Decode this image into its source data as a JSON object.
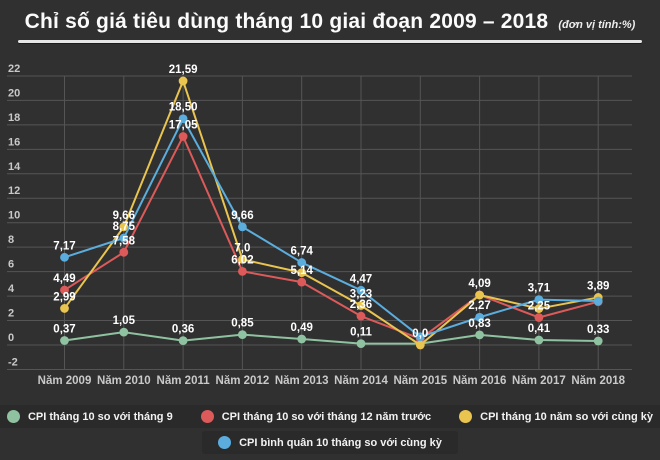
{
  "page": {
    "title": "Chỉ số giá tiêu dùng tháng 10  giai đoạn 2009 – 2018",
    "unit_note": "(đơn vị tính:%)"
  },
  "colors": {
    "background": "#303030",
    "grid": "#555555",
    "axis_text": "#c9c9c9",
    "point_label_text": "#ffffff",
    "separator": "#e6e6e6",
    "legend_panel": "#2a2a2b"
  },
  "chart_data": {
    "type": "line",
    "title": "Chỉ số giá tiêu dùng tháng 10  giai đoạn 2009 – 2018",
    "unit": "%",
    "grid": true,
    "legend_position": "bottom",
    "categories": [
      "Năm 2009",
      "Năm 2010",
      "Năm 2011",
      "Năm 2012",
      "Năm 2013",
      "Năm 2014",
      "Năm 2015",
      "Năm 2016",
      "Năm 2017",
      "Năm 2018"
    ],
    "ylim": [
      -2,
      22
    ],
    "yticks": [
      22,
      20,
      18,
      16,
      14,
      12,
      10,
      8,
      6,
      4,
      2,
      0,
      -2
    ],
    "series": [
      {
        "name": "CPI tháng 10 so với tháng 9",
        "color": "#8fc2a0",
        "values": [
          0.37,
          1.05,
          0.36,
          0.85,
          0.49,
          0.11,
          0.11,
          0.83,
          0.41,
          0.33
        ],
        "point_labels": [
          "0,37",
          "1,05",
          "0,36",
          "0,85",
          "0,49",
          "0,11",
          "",
          "0,83",
          "0,41",
          "0,33"
        ]
      },
      {
        "name": "CPI tháng 10 so với tháng 12 năm trước",
        "color": "#dd5a5a",
        "values": [
          4.49,
          7.58,
          17.05,
          6.02,
          5.14,
          2.36,
          0.51,
          4.09,
          2.25,
          3.54
        ],
        "point_labels": [
          "4,49",
          "7,58",
          "17,05",
          "6,02",
          "5,14",
          "2,36",
          "",
          "",
          "2,25",
          ""
        ]
      },
      {
        "name": "CPI tháng 10 năm so với cùng kỳ",
        "color": "#e9c44f",
        "values": [
          2.99,
          9.66,
          21.59,
          7.0,
          5.92,
          3.23,
          0.0,
          4.09,
          2.98,
          3.89
        ],
        "point_labels": [
          "2,99",
          "9,66",
          "21,59",
          "7,0",
          "",
          "3,23",
          "0,0",
          "4,09",
          "",
          "3,89"
        ]
      },
      {
        "name": "CPI bình quân 10 tháng so với cùng kỳ",
        "color": "#5badde",
        "values": [
          7.17,
          8.75,
          18.5,
          9.66,
          6.74,
          4.47,
          0.67,
          2.27,
          3.71,
          3.6
        ],
        "point_labels": [
          "7,17",
          "8,75",
          "18,50",
          "9,66",
          "6,74",
          "4,47",
          "",
          "2,27",
          "3,71",
          ""
        ]
      }
    ]
  }
}
